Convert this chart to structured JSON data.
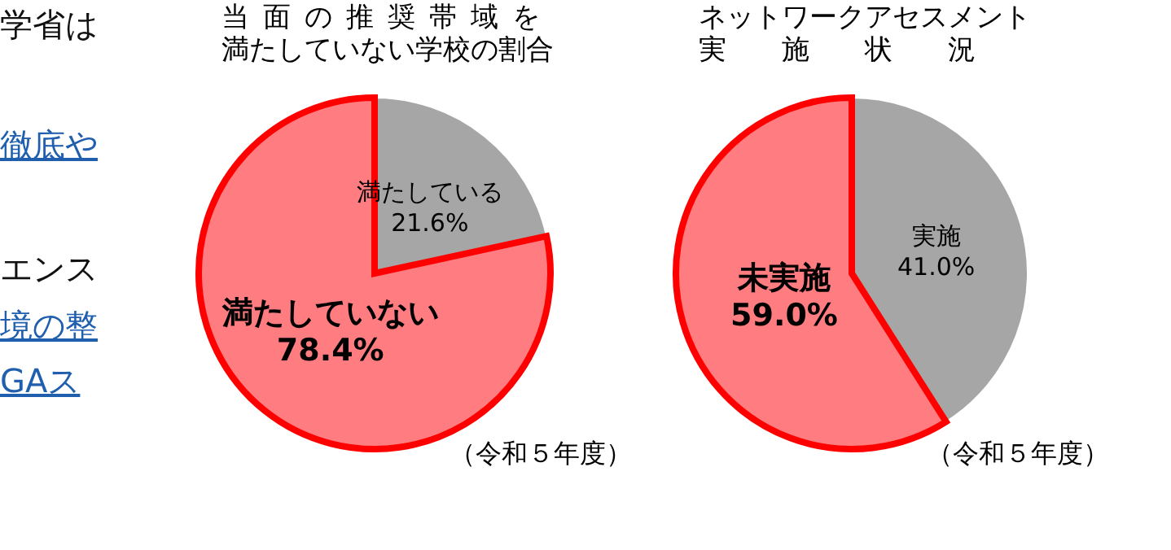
{
  "chart_data": [
    {
      "type": "other",
      "annotations": [
        "学省は",
        "徹底や",
        "エンス",
        "境の整",
        "GAス"
      ]
    },
    {
      "type": "pie",
      "title": "当面の推奨帯域を",
      "subtitle": "満たしていない学校の割合",
      "categories": [
        "満たしている",
        "満たしていない"
      ],
      "values": [
        21.6,
        78.4
      ],
      "value_labels": [
        "21.6%",
        "78.4%"
      ],
      "colors": [
        "#a6a6a6",
        "#ff7c80"
      ],
      "annotations": [
        "（令和５年度）"
      ]
    },
    {
      "type": "pie",
      "title": "ネットワークアセスメント",
      "subtitle": "実施状況",
      "categories": [
        "実施",
        "未実施"
      ],
      "values": [
        41.0,
        59.0
      ],
      "value_labels": [
        "41.0%",
        "59.0%"
      ],
      "colors": [
        "#a6a6a6",
        "#ff7c80"
      ],
      "annotations": [
        "（令和５年度）"
      ]
    }
  ]
}
